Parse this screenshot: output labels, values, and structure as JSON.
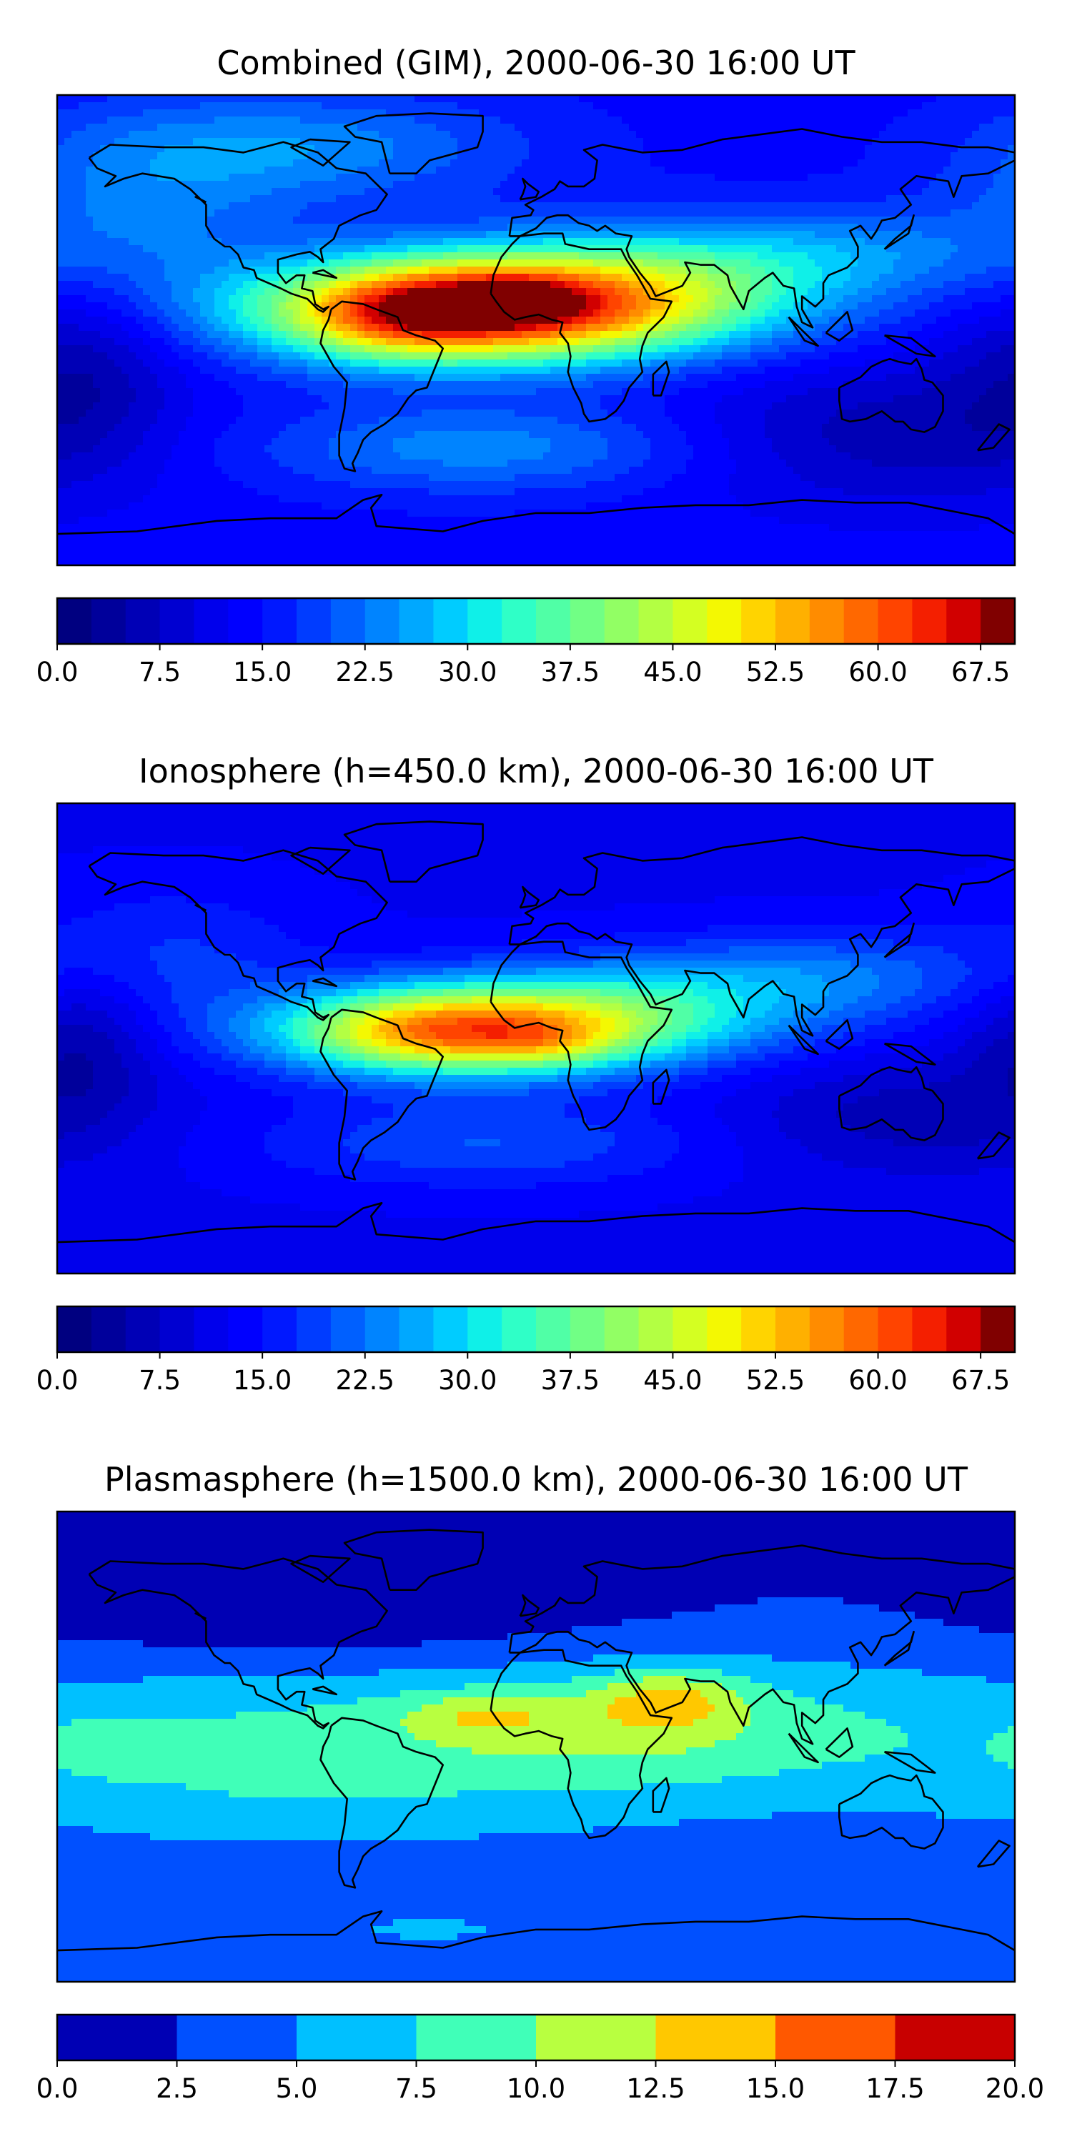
{
  "panels": [
    {
      "title": "Combined (GIM), 2000-06-30 16:00 UT",
      "colorbar": {
        "min": 0,
        "max": 70,
        "levels": 28,
        "ticks": [
          "0.0",
          "7.5",
          "15.0",
          "22.5",
          "30.0",
          "37.5",
          "45.0",
          "52.5",
          "60.0",
          "67.5"
        ],
        "tick_values": [
          0,
          7.5,
          15,
          22.5,
          30,
          37.5,
          45,
          52.5,
          60,
          67.5
        ]
      },
      "field": {
        "background": 14,
        "blobs": [
          {
            "lon": -25,
            "lat": 8,
            "sx": 55,
            "sy": 14,
            "amp": 50
          },
          {
            "lon": -10,
            "lat": 13,
            "sx": 15,
            "sy": 6,
            "amp": 8
          },
          {
            "lon": -55,
            "lat": 5,
            "sx": 25,
            "sy": 12,
            "amp": 10
          },
          {
            "lon": 40,
            "lat": 15,
            "sx": 55,
            "sy": 16,
            "amp": 18
          },
          {
            "lon": 110,
            "lat": 30,
            "sx": 50,
            "sy": 12,
            "amp": 8
          },
          {
            "lon": -150,
            "lat": 40,
            "sx": 40,
            "sy": 25,
            "amp": 8
          },
          {
            "lon": -20,
            "lat": -45,
            "sx": 60,
            "sy": 12,
            "amp": 10
          },
          {
            "lon": -90,
            "lat": 70,
            "sx": 60,
            "sy": 15,
            "amp": 10
          },
          {
            "lon": 130,
            "lat": -40,
            "sx": 55,
            "sy": 20,
            "amp": -8
          },
          {
            "lon": -170,
            "lat": -10,
            "sx": 25,
            "sy": 25,
            "amp": -8
          }
        ]
      }
    },
    {
      "title": "Ionosphere  (h=450.0 km), 2000-06-30 16:00 UT",
      "colorbar": {
        "min": 0,
        "max": 70,
        "levels": 28,
        "ticks": [
          "0.0",
          "7.5",
          "15.0",
          "22.5",
          "30.0",
          "37.5",
          "45.0",
          "52.5",
          "60.0",
          "67.5"
        ],
        "tick_values": [
          0,
          7.5,
          15,
          22.5,
          30,
          37.5,
          45,
          52.5,
          60,
          67.5
        ]
      },
      "field": {
        "background": 12,
        "blobs": [
          {
            "lon": -25,
            "lat": 3,
            "sx": 50,
            "sy": 12,
            "amp": 40
          },
          {
            "lon": 0,
            "lat": -2,
            "sx": 20,
            "sy": 6,
            "amp": 6
          },
          {
            "lon": -55,
            "lat": 2,
            "sx": 25,
            "sy": 10,
            "amp": 6
          },
          {
            "lon": 40,
            "lat": 12,
            "sx": 55,
            "sy": 14,
            "amp": 14
          },
          {
            "lon": 110,
            "lat": 25,
            "sx": 45,
            "sy": 12,
            "amp": 8
          },
          {
            "lon": -140,
            "lat": 30,
            "sx": 40,
            "sy": 20,
            "amp": 6
          },
          {
            "lon": -20,
            "lat": -40,
            "sx": 60,
            "sy": 12,
            "amp": 8
          },
          {
            "lon": -170,
            "lat": 0,
            "sx": 20,
            "sy": 20,
            "amp": -8
          },
          {
            "lon": 140,
            "lat": -30,
            "sx": 45,
            "sy": 15,
            "amp": -6
          }
        ]
      }
    },
    {
      "title": "Plasmasphere (h=1500.0 km), 2000-06-30 16:00 UT",
      "colorbar": {
        "min": 0,
        "max": 20,
        "levels": 8,
        "ticks": [
          "0.0",
          "2.5",
          "5.0",
          "7.5",
          "10.0",
          "12.5",
          "15.0",
          "17.5",
          "20.0"
        ],
        "tick_values": [
          0,
          2.5,
          5,
          7.5,
          10,
          12.5,
          15,
          17.5,
          20
        ]
      },
      "field": {
        "background": 2.6,
        "blobs": [
          {
            "lon": 0,
            "lat": 5,
            "sx": 200,
            "sy": 22,
            "amp": 6
          },
          {
            "lon": -100,
            "lat": -20,
            "sx": 70,
            "sy": 15,
            "amp": 2
          },
          {
            "lon": -20,
            "lat": 12,
            "sx": 20,
            "sy": 6,
            "amp": 4
          },
          {
            "lon": 50,
            "lat": 18,
            "sx": 20,
            "sy": 8,
            "amp": 5.5
          },
          {
            "lon": 30,
            "lat": 5,
            "sx": 45,
            "sy": 15,
            "amp": 2
          },
          {
            "lon": -165,
            "lat": 0,
            "sx": 15,
            "sy": 8,
            "amp": 2
          },
          {
            "lon": -40,
            "lat": -70,
            "sx": 30,
            "sy": 5,
            "amp": 3
          },
          {
            "lon": -80,
            "lat": 55,
            "sx": 80,
            "sy": 18,
            "amp": -3
          },
          {
            "lon": -30,
            "lat": 75,
            "sx": 100,
            "sy": 10,
            "amp": -1.5
          },
          {
            "lon": 90,
            "lat": -40,
            "sx": 120,
            "sy": 8,
            "amp": 1
          }
        ]
      }
    }
  ],
  "cmap": {
    "discrete28": [
      "#000080",
      "#00009b",
      "#0000b6",
      "#0000d1",
      "#0000ec",
      "#0000ff",
      "#0018ff",
      "#003cff",
      "#0060ff",
      "#0084ff",
      "#00a8ff",
      "#00ccff",
      "#0ff0e8",
      "#2fffc7",
      "#50ffa6",
      "#71ff85",
      "#92ff64",
      "#b3ff43",
      "#d4ff22",
      "#f4f802",
      "#ffd400",
      "#ffb000",
      "#ff8c00",
      "#ff6800",
      "#ff4400",
      "#f41f00",
      "#d10000",
      "#800000"
    ],
    "discrete8": [
      "#0000b4",
      "#0050ff",
      "#00c0ff",
      "#40ffb8",
      "#b8ff40",
      "#ffc800",
      "#ff5800",
      "#c80000"
    ]
  },
  "coastline_color": "#000000"
}
